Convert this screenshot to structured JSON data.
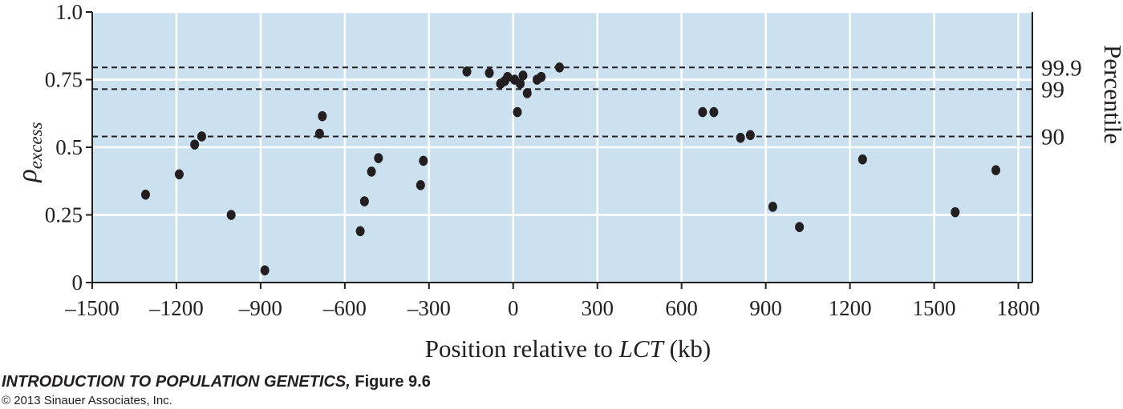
{
  "chart_data": {
    "type": "scatter",
    "title": "",
    "xlabel": {
      "prefix": "Position relative to ",
      "italic": "LCT",
      "suffix": " (kb)"
    },
    "ylabel": {
      "symbol": "ρ",
      "subscript": "excess"
    },
    "right_label": "Percentile",
    "xlim": [
      -1500,
      1850
    ],
    "ylim": [
      0,
      1.0
    ],
    "xticks": [
      -1500,
      -1200,
      -900,
      -600,
      -300,
      0,
      300,
      600,
      900,
      1200,
      1500,
      1800
    ],
    "xtick_labels": [
      "–1500",
      "–1200",
      "–900",
      "–600",
      "–300",
      "0",
      "300",
      "600",
      "900",
      "1200",
      "1500",
      "1800"
    ],
    "yticks": [
      0,
      0.25,
      0.5,
      0.75,
      1.0
    ],
    "ytick_labels": [
      "0",
      "0.25",
      "0.5",
      "0.75",
      "1.0"
    ],
    "grid": true,
    "thresholds": [
      {
        "label": "99.9",
        "value": 0.795
      },
      {
        "label": "99",
        "value": 0.715
      },
      {
        "label": "90",
        "value": 0.54
      }
    ],
    "points": [
      {
        "x": -1310,
        "y": 0.325
      },
      {
        "x": -1190,
        "y": 0.4
      },
      {
        "x": -1135,
        "y": 0.51
      },
      {
        "x": -1110,
        "y": 0.54
      },
      {
        "x": -1005,
        "y": 0.25
      },
      {
        "x": -885,
        "y": 0.045
      },
      {
        "x": -690,
        "y": 0.55
      },
      {
        "x": -680,
        "y": 0.615
      },
      {
        "x": -545,
        "y": 0.19
      },
      {
        "x": -530,
        "y": 0.3
      },
      {
        "x": -505,
        "y": 0.41
      },
      {
        "x": -480,
        "y": 0.46
      },
      {
        "x": -330,
        "y": 0.36
      },
      {
        "x": -320,
        "y": 0.45
      },
      {
        "x": -165,
        "y": 0.78
      },
      {
        "x": -85,
        "y": 0.775
      },
      {
        "x": -45,
        "y": 0.735
      },
      {
        "x": -30,
        "y": 0.745
      },
      {
        "x": -20,
        "y": 0.76
      },
      {
        "x": 5,
        "y": 0.75
      },
      {
        "x": 15,
        "y": 0.63
      },
      {
        "x": 25,
        "y": 0.735
      },
      {
        "x": 35,
        "y": 0.765
      },
      {
        "x": 50,
        "y": 0.7
      },
      {
        "x": 85,
        "y": 0.75
      },
      {
        "x": 100,
        "y": 0.76
      },
      {
        "x": 165,
        "y": 0.795
      },
      {
        "x": 675,
        "y": 0.63
      },
      {
        "x": 715,
        "y": 0.63
      },
      {
        "x": 810,
        "y": 0.535
      },
      {
        "x": 845,
        "y": 0.545
      },
      {
        "x": 925,
        "y": 0.28
      },
      {
        "x": 1020,
        "y": 0.205
      },
      {
        "x": 1245,
        "y": 0.455
      },
      {
        "x": 1575,
        "y": 0.26
      },
      {
        "x": 1720,
        "y": 0.415
      }
    ],
    "colors": {
      "background": "#cbe1ef",
      "grid": "#ffffff",
      "point": "#231f20",
      "axis": "#231f20"
    }
  },
  "caption": {
    "title": "INTRODUCTION TO POPULATION GENETICS,",
    "figure": " Figure 9.6",
    "copyright": "© 2013 Sinauer Associates, Inc."
  }
}
